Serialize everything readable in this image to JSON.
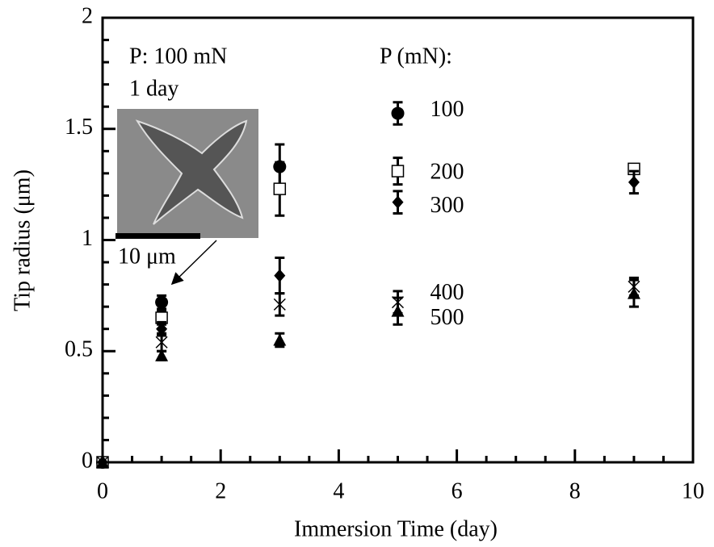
{
  "chart_data": {
    "type": "scatter",
    "x_label": "Immersion Time (day)",
    "y_label": "Tip radius (μm)",
    "xlim": [
      0,
      10
    ],
    "xticks": [
      0,
      2,
      4,
      6,
      8,
      10
    ],
    "ylim": [
      0,
      2
    ],
    "yticks": [
      0,
      0.5,
      1,
      1.5,
      2
    ],
    "annotations": [
      "P: 100 mN",
      "1 day",
      "10 μm",
      "P (mN):"
    ],
    "series": [
      {
        "name": "100",
        "color": "#000000",
        "marker": "circle",
        "x": [
          0,
          1,
          3,
          5
        ],
        "values": [
          0,
          0.72,
          1.33,
          1.57
        ],
        "errors": [
          0,
          0.03,
          0.1,
          0.05
        ]
      },
      {
        "name": "200",
        "color": "#000000",
        "marker": "square-open",
        "x": [
          0,
          1,
          3,
          5,
          9
        ],
        "values": [
          0,
          0.65,
          1.23,
          1.31,
          1.32
        ],
        "errors": [
          0,
          0.03,
          0.12,
          0.06,
          0.02
        ]
      },
      {
        "name": "300",
        "color": "#000000",
        "marker": "diamond",
        "x": [
          0,
          1,
          3,
          5,
          9
        ],
        "values": [
          0,
          0.6,
          0.84,
          1.17,
          1.26
        ],
        "errors": [
          0,
          0.03,
          0.08,
          0.05,
          0.05
        ]
      },
      {
        "name": "400",
        "color": "#000000",
        "marker": "x",
        "x": [
          0,
          1,
          3,
          5,
          9
        ],
        "values": [
          0,
          0.54,
          0.71,
          0.72,
          0.79
        ],
        "errors": [
          0,
          0.04,
          0.05,
          0.05,
          0.04
        ]
      },
      {
        "name": "500",
        "color": "#000000",
        "marker": "triangle",
        "x": [
          0,
          1,
          3,
          5,
          9
        ],
        "values": [
          0,
          0.48,
          0.55,
          0.68,
          0.76
        ],
        "errors": [
          0,
          0.02,
          0.03,
          0.06,
          0.06
        ]
      }
    ]
  }
}
